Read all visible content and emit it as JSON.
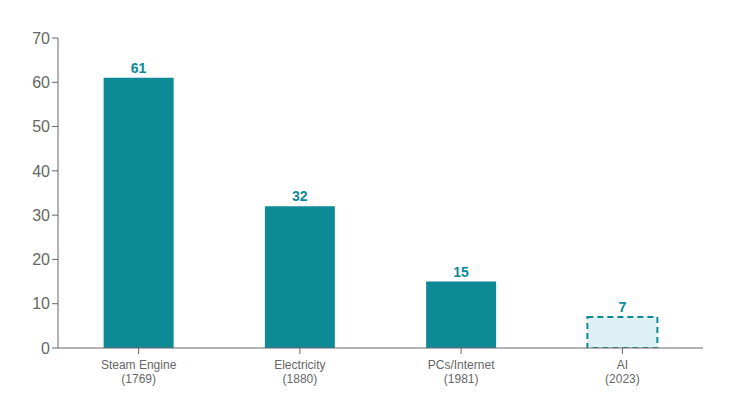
{
  "chart_data": {
    "type": "bar",
    "categories": [
      "Steam Engine\n(1769)",
      "Electricity\n(1880)",
      "PCs/Internet\n(1981)",
      "AI\n(2023)"
    ],
    "values": [
      61,
      32,
      15,
      7
    ],
    "color": "#0d8a96",
    "colors": [
      "#0d8a96",
      "#0d8a96",
      "#0d8a96",
      "#ddf0f3"
    ],
    "line_style": "dashed",
    "ylim": [
      0,
      70
    ],
    "yticks": [
      0,
      10,
      20,
      30,
      40,
      50,
      60,
      70
    ],
    "grid": false,
    "data_labels": true
  }
}
